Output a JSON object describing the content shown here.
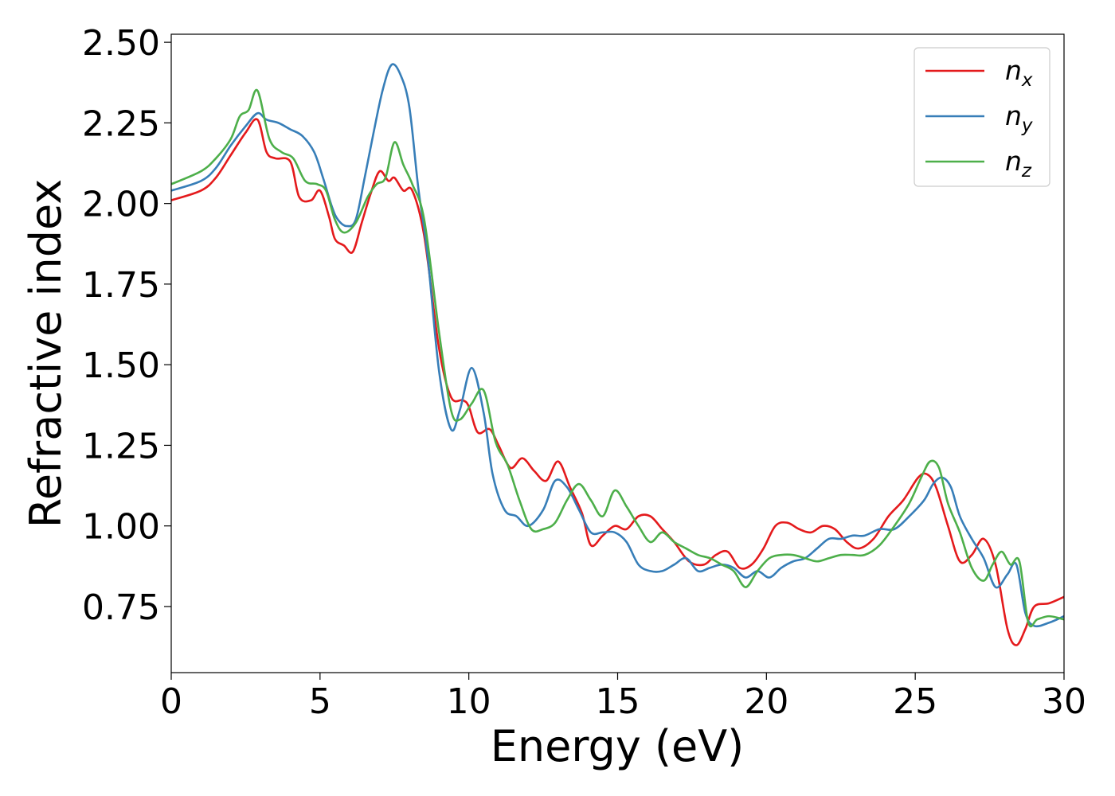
{
  "chart_data": {
    "type": "line",
    "title": "",
    "xlabel": "Energy (eV)",
    "ylabel": "Refractive index",
    "xlim": [
      0,
      30
    ],
    "ylim": [
      0.545,
      2.525
    ],
    "xticks": [
      0,
      5,
      10,
      15,
      20,
      25,
      30
    ],
    "xtick_labels": [
      "0",
      "5",
      "10",
      "15",
      "20",
      "25",
      "30"
    ],
    "yticks": [
      0.75,
      1.0,
      1.25,
      1.5,
      1.75,
      2.0,
      2.25,
      2.5
    ],
    "ytick_labels": [
      "0.75",
      "1.00",
      "1.25",
      "1.50",
      "1.75",
      "2.00",
      "2.25",
      "2.50"
    ],
    "grid": false,
    "legend": "top-right",
    "series": [
      {
        "name": "n",
        "subscript": "x",
        "color": "#e41a1c",
        "x": [
          0,
          1,
          1.5,
          2,
          2.5,
          2.9,
          3.2,
          3.5,
          4,
          4.3,
          4.7,
          5,
          5.3,
          5.5,
          5.8,
          6.1,
          6.4,
          6.7,
          7,
          7.3,
          7.5,
          7.8,
          8.1,
          8.5,
          9,
          9.4,
          9.8,
          10,
          10.3,
          10.7,
          11,
          11.4,
          11.8,
          12.2,
          12.6,
          13,
          13.4,
          13.8,
          14.1,
          14.5,
          14.9,
          15.3,
          15.7,
          16.1,
          16.5,
          16.9,
          17.4,
          17.9,
          18.3,
          18.7,
          19.1,
          19.5,
          19.9,
          20.3,
          20.7,
          21.1,
          21.5,
          21.9,
          22.3,
          22.7,
          23.1,
          23.6,
          24.1,
          24.6,
          25.1,
          25.4,
          25.7,
          26.1,
          26.5,
          26.9,
          27.3,
          27.7,
          28.1,
          28.4,
          28.7,
          29,
          29.5,
          30
        ],
        "y": [
          2.01,
          2.04,
          2.08,
          2.15,
          2.22,
          2.26,
          2.16,
          2.14,
          2.13,
          2.02,
          2.01,
          2.04,
          1.96,
          1.89,
          1.87,
          1.85,
          1.94,
          2.03,
          2.1,
          2.07,
          2.08,
          2.04,
          2.04,
          1.9,
          1.55,
          1.4,
          1.39,
          1.37,
          1.29,
          1.3,
          1.25,
          1.18,
          1.21,
          1.17,
          1.14,
          1.2,
          1.12,
          1.04,
          0.94,
          0.97,
          1.0,
          0.99,
          1.03,
          1.03,
          0.99,
          0.95,
          0.89,
          0.88,
          0.91,
          0.92,
          0.87,
          0.88,
          0.93,
          1.0,
          1.01,
          0.99,
          0.98,
          1.0,
          0.99,
          0.95,
          0.93,
          0.96,
          1.03,
          1.08,
          1.15,
          1.16,
          1.12,
          1.0,
          0.89,
          0.91,
          0.96,
          0.88,
          0.68,
          0.63,
          0.68,
          0.75,
          0.76,
          0.78
        ]
      },
      {
        "name": "n",
        "subscript": "y",
        "color": "#377eb8",
        "x": [
          0,
          1,
          1.5,
          2,
          2.5,
          2.9,
          3.2,
          3.6,
          4,
          4.4,
          4.8,
          5.1,
          5.4,
          5.6,
          5.9,
          6.2,
          6.5,
          6.8,
          7.1,
          7.4,
          7.7,
          8,
          8.3,
          8.6,
          9,
          9.4,
          9.7,
          10.1,
          10.5,
          10.8,
          11.2,
          11.6,
          12,
          12.5,
          12.9,
          13.3,
          13.7,
          14.1,
          14.5,
          14.9,
          15.3,
          15.7,
          16.1,
          16.5,
          16.9,
          17.3,
          17.7,
          18.1,
          18.5,
          18.9,
          19.3,
          19.7,
          20.1,
          20.5,
          20.9,
          21.3,
          21.7,
          22.1,
          22.5,
          22.9,
          23.3,
          23.8,
          24.3,
          24.8,
          25.3,
          25.6,
          25.9,
          26.2,
          26.5,
          26.9,
          27.3,
          27.7,
          28.1,
          28.4,
          28.7,
          29,
          29.5,
          30
        ],
        "y": [
          2.04,
          2.07,
          2.11,
          2.18,
          2.24,
          2.28,
          2.26,
          2.25,
          2.23,
          2.21,
          2.16,
          2.08,
          1.99,
          1.95,
          1.93,
          1.95,
          2.08,
          2.22,
          2.35,
          2.43,
          2.4,
          2.3,
          2.05,
          1.85,
          1.48,
          1.3,
          1.36,
          1.49,
          1.35,
          1.16,
          1.05,
          1.03,
          1.0,
          1.05,
          1.14,
          1.12,
          1.05,
          0.98,
          0.98,
          0.98,
          0.95,
          0.88,
          0.86,
          0.86,
          0.88,
          0.9,
          0.86,
          0.87,
          0.88,
          0.87,
          0.84,
          0.86,
          0.84,
          0.87,
          0.89,
          0.9,
          0.93,
          0.96,
          0.96,
          0.97,
          0.97,
          0.99,
          0.99,
          1.03,
          1.08,
          1.13,
          1.15,
          1.12,
          1.03,
          0.96,
          0.9,
          0.81,
          0.85,
          0.88,
          0.73,
          0.69,
          0.7,
          0.72
        ]
      },
      {
        "name": "n",
        "subscript": "z",
        "color": "#4daf4a",
        "x": [
          0,
          1,
          1.5,
          2,
          2.3,
          2.6,
          2.9,
          3.3,
          3.7,
          4.1,
          4.5,
          4.9,
          5.2,
          5.5,
          5.8,
          6.2,
          6.6,
          6.9,
          7.2,
          7.5,
          7.8,
          8.1,
          8.5,
          9,
          9.4,
          9.7,
          10.1,
          10.5,
          10.9,
          11.3,
          11.7,
          12.1,
          12.5,
          12.9,
          13.3,
          13.7,
          14.1,
          14.5,
          14.9,
          15.3,
          15.7,
          16.1,
          16.5,
          16.9,
          17.3,
          17.7,
          18.1,
          18.5,
          18.9,
          19.3,
          19.7,
          20.1,
          20.5,
          20.9,
          21.3,
          21.7,
          22.1,
          22.5,
          22.9,
          23.3,
          23.8,
          24.3,
          24.8,
          25.2,
          25.5,
          25.8,
          26.1,
          26.5,
          26.9,
          27.3,
          27.6,
          27.9,
          28.2,
          28.5,
          28.8,
          29.1,
          29.5,
          30
        ],
        "y": [
          2.06,
          2.1,
          2.14,
          2.2,
          2.27,
          2.29,
          2.35,
          2.2,
          2.16,
          2.14,
          2.07,
          2.06,
          2.04,
          1.95,
          1.91,
          1.94,
          2.02,
          2.06,
          2.08,
          2.19,
          2.12,
          2.06,
          1.95,
          1.6,
          1.36,
          1.33,
          1.38,
          1.42,
          1.26,
          1.19,
          1.08,
          0.99,
          0.99,
          1.01,
          1.08,
          1.13,
          1.08,
          1.03,
          1.11,
          1.06,
          1.0,
          0.95,
          0.98,
          0.95,
          0.93,
          0.91,
          0.9,
          0.88,
          0.86,
          0.81,
          0.86,
          0.9,
          0.91,
          0.91,
          0.9,
          0.89,
          0.9,
          0.91,
          0.91,
          0.91,
          0.94,
          1.0,
          1.07,
          1.15,
          1.2,
          1.18,
          1.07,
          0.98,
          0.87,
          0.83,
          0.88,
          0.92,
          0.88,
          0.89,
          0.7,
          0.71,
          0.72,
          0.71
        ]
      }
    ]
  }
}
